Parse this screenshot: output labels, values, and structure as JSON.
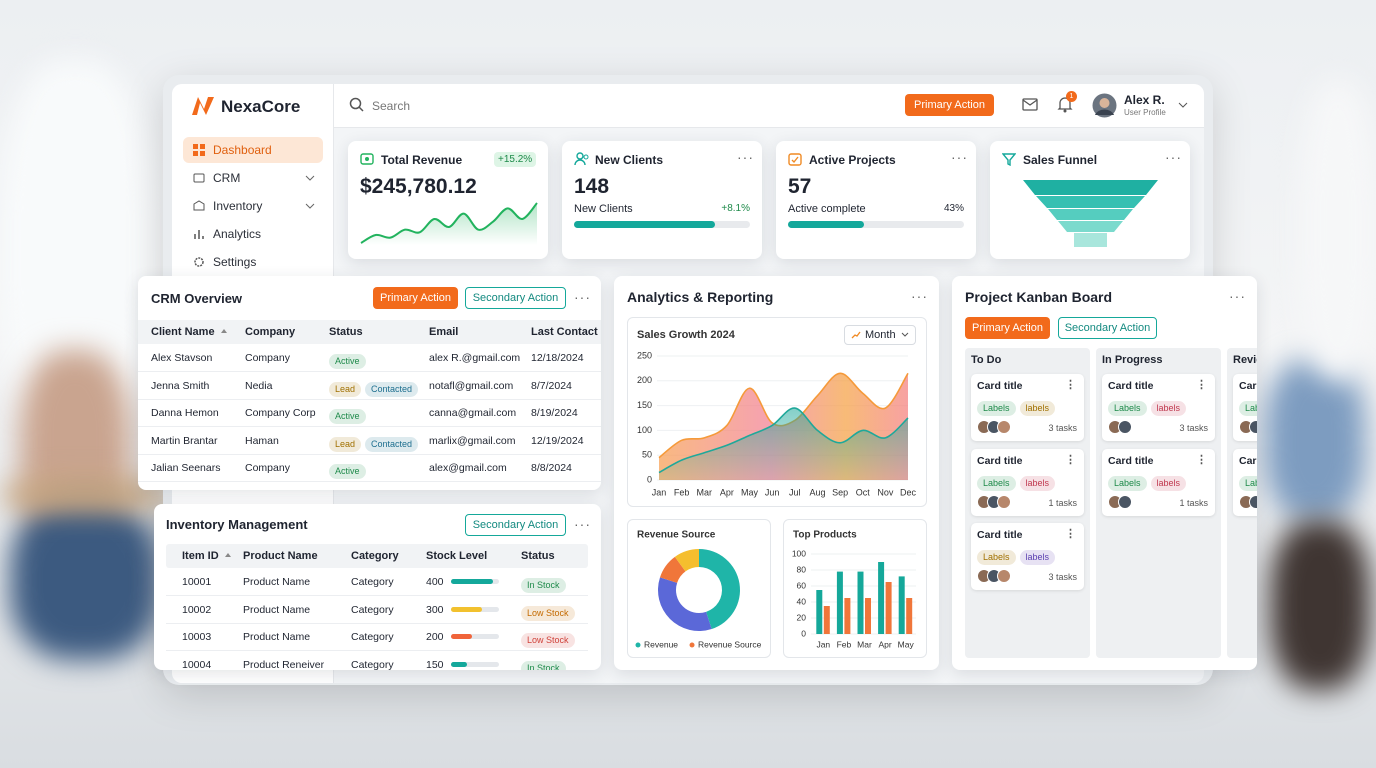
{
  "app": {
    "brand": "NexaCore"
  },
  "sidebar": {
    "items": [
      "Dashboard",
      "CRM",
      "Inventory",
      "Analytics",
      "Settings"
    ]
  },
  "header": {
    "search": "Search",
    "primary_action": "Primary Action",
    "notifications": "1",
    "user_name": "Alex R.",
    "user_role": "User Profile"
  },
  "kpis": {
    "revenue": {
      "title": "Total Revenue",
      "change": "+15.2%",
      "value": "$245,780.12",
      "color": "#22b35e",
      "sparkline": [
        12,
        18,
        16,
        22,
        20,
        30,
        24,
        34,
        22,
        28,
        38,
        30,
        42
      ]
    },
    "clients": {
      "title": "New Clients",
      "value": 148,
      "label": "New Clients",
      "change": "+8.1%",
      "progress": 80,
      "color": "#14a89b"
    },
    "projects": {
      "title": "Active Projects",
      "value": 57,
      "label": "Active complete",
      "progress": {
        "value": 43,
        "label": "43%"
      },
      "color": "#14a89b"
    },
    "funnel": {
      "title": "Sales Funnel"
    }
  },
  "crm": {
    "title": "CRM Overview",
    "primary_action": "Primary Action",
    "secondary_action": "Secondary Action",
    "columns": [
      "Client Name",
      "Company",
      "Status",
      "Email",
      "Last Contact"
    ],
    "rows": [
      [
        "Alex Stavson",
        "Company",
        [
          {
            "text": "Active",
            "color": "#1e8a4a"
          }
        ],
        "alex R.@gmail.com",
        "12/18/2024"
      ],
      [
        "Jenna Smith",
        "Nedia",
        [
          {
            "text": "Lead",
            "color": "#a07000"
          },
          {
            "text": "Contacted",
            "color": "#1e6f8f"
          }
        ],
        "notafl@gmail.com",
        "8/7/2024"
      ],
      [
        "Danna Hemon",
        "Company Corp",
        [
          {
            "text": "Active",
            "color": "#1e8a4a"
          }
        ],
        "canna@gmail.com",
        "8/19/2024"
      ],
      [
        "Martin Brantar",
        "Haman",
        [
          {
            "text": "Lead",
            "color": "#a07000"
          },
          {
            "text": "Contacted",
            "color": "#1e6f8f"
          }
        ],
        "marlix@gmail.com",
        "12/19/2024"
      ],
      [
        "Jalian Seenars",
        "Company",
        [
          {
            "text": "Active",
            "color": "#1e8a4a"
          }
        ],
        "alex@gmail.com",
        "8/8/2024"
      ]
    ]
  },
  "inventory": {
    "title": "Inventory Management",
    "secondary_action": "Secondary Action",
    "columns": [
      "Item ID",
      "Product Name",
      "Category",
      "Stock Level",
      "Status"
    ],
    "stock_lim": [
      0,
      460
    ],
    "rows": [
      [
        "10001",
        "Product Name",
        "Category",
        {
          "value": 400,
          "color": "#14a89b"
        },
        {
          "text": "In Stock",
          "color": "#1e8a4a"
        }
      ],
      [
        "10002",
        "Product Name",
        "Category",
        {
          "value": 300,
          "color": "#f2c12e"
        },
        {
          "text": "Low Stock",
          "color": "#c46a00"
        }
      ],
      [
        "10003",
        "Product Name",
        "Category",
        {
          "value": 200,
          "color": "#f0643a"
        },
        {
          "text": "Low Stock",
          "color": "#d0423a"
        }
      ],
      [
        "10004",
        "Product Reneiver",
        "Category",
        {
          "value": 150,
          "color": "#14a89b"
        },
        {
          "text": "In Stock",
          "color": "#1e8a4a"
        }
      ]
    ]
  },
  "analytics": {
    "title": "Analytics & Reporting",
    "sales": {
      "type": "area",
      "title": "Sales Growth 2024",
      "period": "Month",
      "categories": [
        "Jan",
        "Feb",
        "Mar",
        "Apr",
        "May",
        "Jun",
        "Jul",
        "Aug",
        "Sep",
        "Oct",
        "Nov",
        "Dec"
      ],
      "series": [
        {
          "color": "#f59a3a",
          "values": [
            45,
            80,
            85,
            110,
            185,
            115,
            120,
            170,
            215,
            175,
            145,
            215
          ]
        },
        {
          "color": "#1fa89a",
          "values": [
            15,
            40,
            55,
            70,
            90,
            110,
            145,
            100,
            75,
            100,
            85,
            125
          ]
        }
      ],
      "ylim": [
        0,
        250
      ],
      "yticks": [
        0,
        50,
        100,
        150,
        200,
        250
      ]
    },
    "revenue_source": {
      "type": "pie",
      "title": "Revenue Source",
      "categories": [
        "Revenue",
        null,
        "Revenue Source",
        null
      ],
      "values": [
        45,
        35,
        10,
        10
      ],
      "colors": [
        "#1fb5a8",
        "#5b68d8",
        "#f0763a",
        "#f5be2e"
      ]
    },
    "top_products": {
      "type": "bar",
      "title": "Top Products",
      "categories": [
        "Jan",
        "Feb",
        "Mar",
        "Apr",
        "May"
      ],
      "series": [
        {
          "color": "#15a89a",
          "values": [
            55,
            78,
            78,
            90,
            72
          ]
        },
        {
          "color": "#f0763a",
          "values": [
            35,
            45,
            45,
            65,
            45
          ]
        }
      ],
      "ylim": [
        0,
        100
      ],
      "yticks": [
        0,
        20,
        40,
        60,
        80,
        100
      ]
    }
  },
  "kanban": {
    "title": "Project Kanban Board",
    "primary_action": "Primary Action",
    "secondary_action": "Secondary Action",
    "columns": [
      {
        "title": "To Do",
        "cards": [
          {
            "title": "Card title",
            "labels": [
              {
                "text": "Labels",
                "color": "#1e8a4a"
              },
              {
                "text": "labels",
                "color": "#a07000"
              }
            ],
            "tasks": "3 tasks"
          },
          {
            "title": "Card title",
            "labels": [
              {
                "text": "Labels",
                "color": "#1e8a4a"
              },
              {
                "text": "labels",
                "color": "#c0394f"
              }
            ],
            "tasks": "1 tasks"
          },
          {
            "title": "Card title",
            "labels": [
              {
                "text": "Labels",
                "color": "#a07000"
              },
              {
                "text": "labels",
                "color": "#5b3fb0"
              }
            ],
            "tasks": "3 tasks"
          }
        ]
      },
      {
        "title": "In Progress",
        "cards": [
          {
            "title": "Card title",
            "labels": [
              {
                "text": "Labels",
                "color": "#1e8a4a"
              },
              {
                "text": "labels",
                "color": "#c0394f"
              }
            ],
            "tasks": "3 tasks"
          },
          {
            "title": "Card title",
            "labels": [
              {
                "text": "Labels",
                "color": "#1e8a4a"
              },
              {
                "text": "labels",
                "color": "#c0394f"
              }
            ],
            "tasks": "1 tasks"
          }
        ]
      },
      {
        "title": "Review",
        "cards": [
          {
            "title": "Card title",
            "labels": [
              {
                "text": "Labels",
                "color": "#1e8a4a"
              }
            ]
          },
          {
            "title": "Card title",
            "labels": [
              {
                "text": "Labels",
                "color": "#1e8a4a"
              }
            ]
          }
        ]
      }
    ]
  }
}
